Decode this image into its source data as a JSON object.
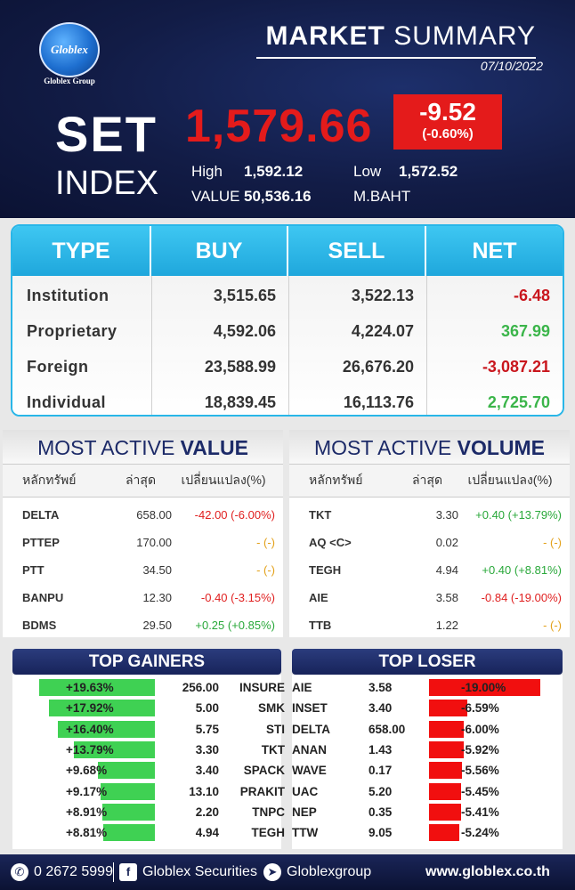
{
  "brand": {
    "logo_text": "Globlex",
    "group_name": "Globlex Group"
  },
  "header": {
    "title_bold": "MARKET",
    "title_rest": "SUMMARY",
    "date": "07/10/2022",
    "index_name_1": "SET",
    "index_name_2": "INDEX",
    "index_value": "1,579.66",
    "change": "-9.52",
    "change_pct": "(-0.60%)",
    "high_label": "High",
    "high_value": "1,592.12",
    "low_label": "Low",
    "low_value": "1,572.52",
    "value_label": "VALUE",
    "value_amount": "50,536.16",
    "value_unit": "M.BAHT"
  },
  "investor_table": {
    "headers": [
      "TYPE",
      "BUY",
      "SELL",
      "NET"
    ],
    "rows": [
      {
        "type": "Institution",
        "buy": "3,515.65",
        "sell": "3,522.13",
        "net": "-6.48",
        "net_dir": "neg"
      },
      {
        "type": "Proprietary",
        "buy": "4,592.06",
        "sell": "4,224.07",
        "net": "367.99",
        "net_dir": "pos"
      },
      {
        "type": "Foreign",
        "buy": "23,588.99",
        "sell": "26,676.20",
        "net": "-3,087.21",
        "net_dir": "neg"
      },
      {
        "type": "Individual",
        "buy": "18,839.45",
        "sell": "16,113.76",
        "net": "2,725.70",
        "net_dir": "pos"
      }
    ]
  },
  "most_active_value": {
    "title_a": "MOST ACTIVE ",
    "title_b": "VALUE",
    "headers": [
      "หลักทรัพย์",
      "ล่าสุด",
      "เปลี่ยนแปลง(%)"
    ],
    "rows": [
      {
        "symbol": "DELTA",
        "last": "658.00",
        "change": "-42.00 (-6.00%)",
        "dir": "neg"
      },
      {
        "symbol": "PTTEP",
        "last": "170.00",
        "change": "- (-)",
        "dir": "zero"
      },
      {
        "symbol": "PTT",
        "last": "34.50",
        "change": "- (-)",
        "dir": "zero"
      },
      {
        "symbol": "BANPU",
        "last": "12.30",
        "change": "-0.40 (-3.15%)",
        "dir": "neg"
      },
      {
        "symbol": "BDMS",
        "last": "29.50",
        "change": "+0.25 (+0.85%)",
        "dir": "pos"
      }
    ]
  },
  "most_active_volume": {
    "title_a": "MOST ACTIVE ",
    "title_b": "VOLUME",
    "headers": [
      "หลักทรัพย์",
      "ล่าสุด",
      "เปลี่ยนแปลง(%)"
    ],
    "rows": [
      {
        "symbol": "TKT",
        "last": "3.30",
        "change": "+0.40 (+13.79%)",
        "dir": "pos"
      },
      {
        "symbol": "AQ <C>",
        "last": "0.02",
        "change": "- (-)",
        "dir": "zero"
      },
      {
        "symbol": "TEGH",
        "last": "4.94",
        "change": "+0.40 (+8.81%)",
        "dir": "pos"
      },
      {
        "symbol": "AIE",
        "last": "3.58",
        "change": "-0.84 (-19.00%)",
        "dir": "neg"
      },
      {
        "symbol": "TTB",
        "last": "1.22",
        "change": "- (-)",
        "dir": "zero"
      }
    ]
  },
  "top_gainers": {
    "title": "TOP GAINERS",
    "rows": [
      {
        "pct": "+19.63%",
        "pct_value": 19.63,
        "price": "256.00",
        "symbol": "INSURE"
      },
      {
        "pct": "+17.92%",
        "pct_value": 17.92,
        "price": "5.00",
        "symbol": "SMK"
      },
      {
        "pct": "+16.40%",
        "pct_value": 16.4,
        "price": "5.75",
        "symbol": "STI"
      },
      {
        "pct": "+13.79%",
        "pct_value": 13.79,
        "price": "3.30",
        "symbol": "TKT"
      },
      {
        "pct": "+9.68%",
        "pct_value": 9.68,
        "price": "3.40",
        "symbol": "SPACK"
      },
      {
        "pct": "+9.17%",
        "pct_value": 9.17,
        "price": "13.10",
        "symbol": "PRAKIT"
      },
      {
        "pct": "+8.91%",
        "pct_value": 8.91,
        "price": "2.20",
        "symbol": "TNPC"
      },
      {
        "pct": "+8.81%",
        "pct_value": 8.81,
        "price": "4.94",
        "symbol": "TEGH"
      }
    ]
  },
  "top_loser": {
    "title": "TOP LOSER",
    "rows": [
      {
        "symbol": "AIE",
        "price": "3.58",
        "pct": "-19.00%",
        "pct_value": 19.0
      },
      {
        "symbol": "INSET",
        "price": "3.40",
        "pct": "-6.59%",
        "pct_value": 6.59
      },
      {
        "symbol": "DELTA",
        "price": "658.00",
        "pct": "-6.00%",
        "pct_value": 6.0
      },
      {
        "symbol": "ANAN",
        "price": "1.43",
        "pct": "-5.92%",
        "pct_value": 5.92
      },
      {
        "symbol": "WAVE",
        "price": "0.17",
        "pct": "-5.56%",
        "pct_value": 5.56
      },
      {
        "symbol": "UAC",
        "price": "5.20",
        "pct": "-5.45%",
        "pct_value": 5.45
      },
      {
        "symbol": "NEP",
        "price": "0.35",
        "pct": "-5.41%",
        "pct_value": 5.41
      },
      {
        "symbol": "TTW",
        "price": "9.05",
        "pct": "-5.24%",
        "pct_value": 5.24
      }
    ]
  },
  "footer": {
    "phone": "0 2672 5999",
    "facebook": "Globlex Securities",
    "telegram": "Globlexgroup",
    "website": "www.globlex.co.th"
  },
  "colors": {
    "positive": "#3bb54a",
    "negative": "#c9161d",
    "neutral": "#e3a11a",
    "header_bg": "#121c46",
    "table_header": "#29b6e8"
  }
}
